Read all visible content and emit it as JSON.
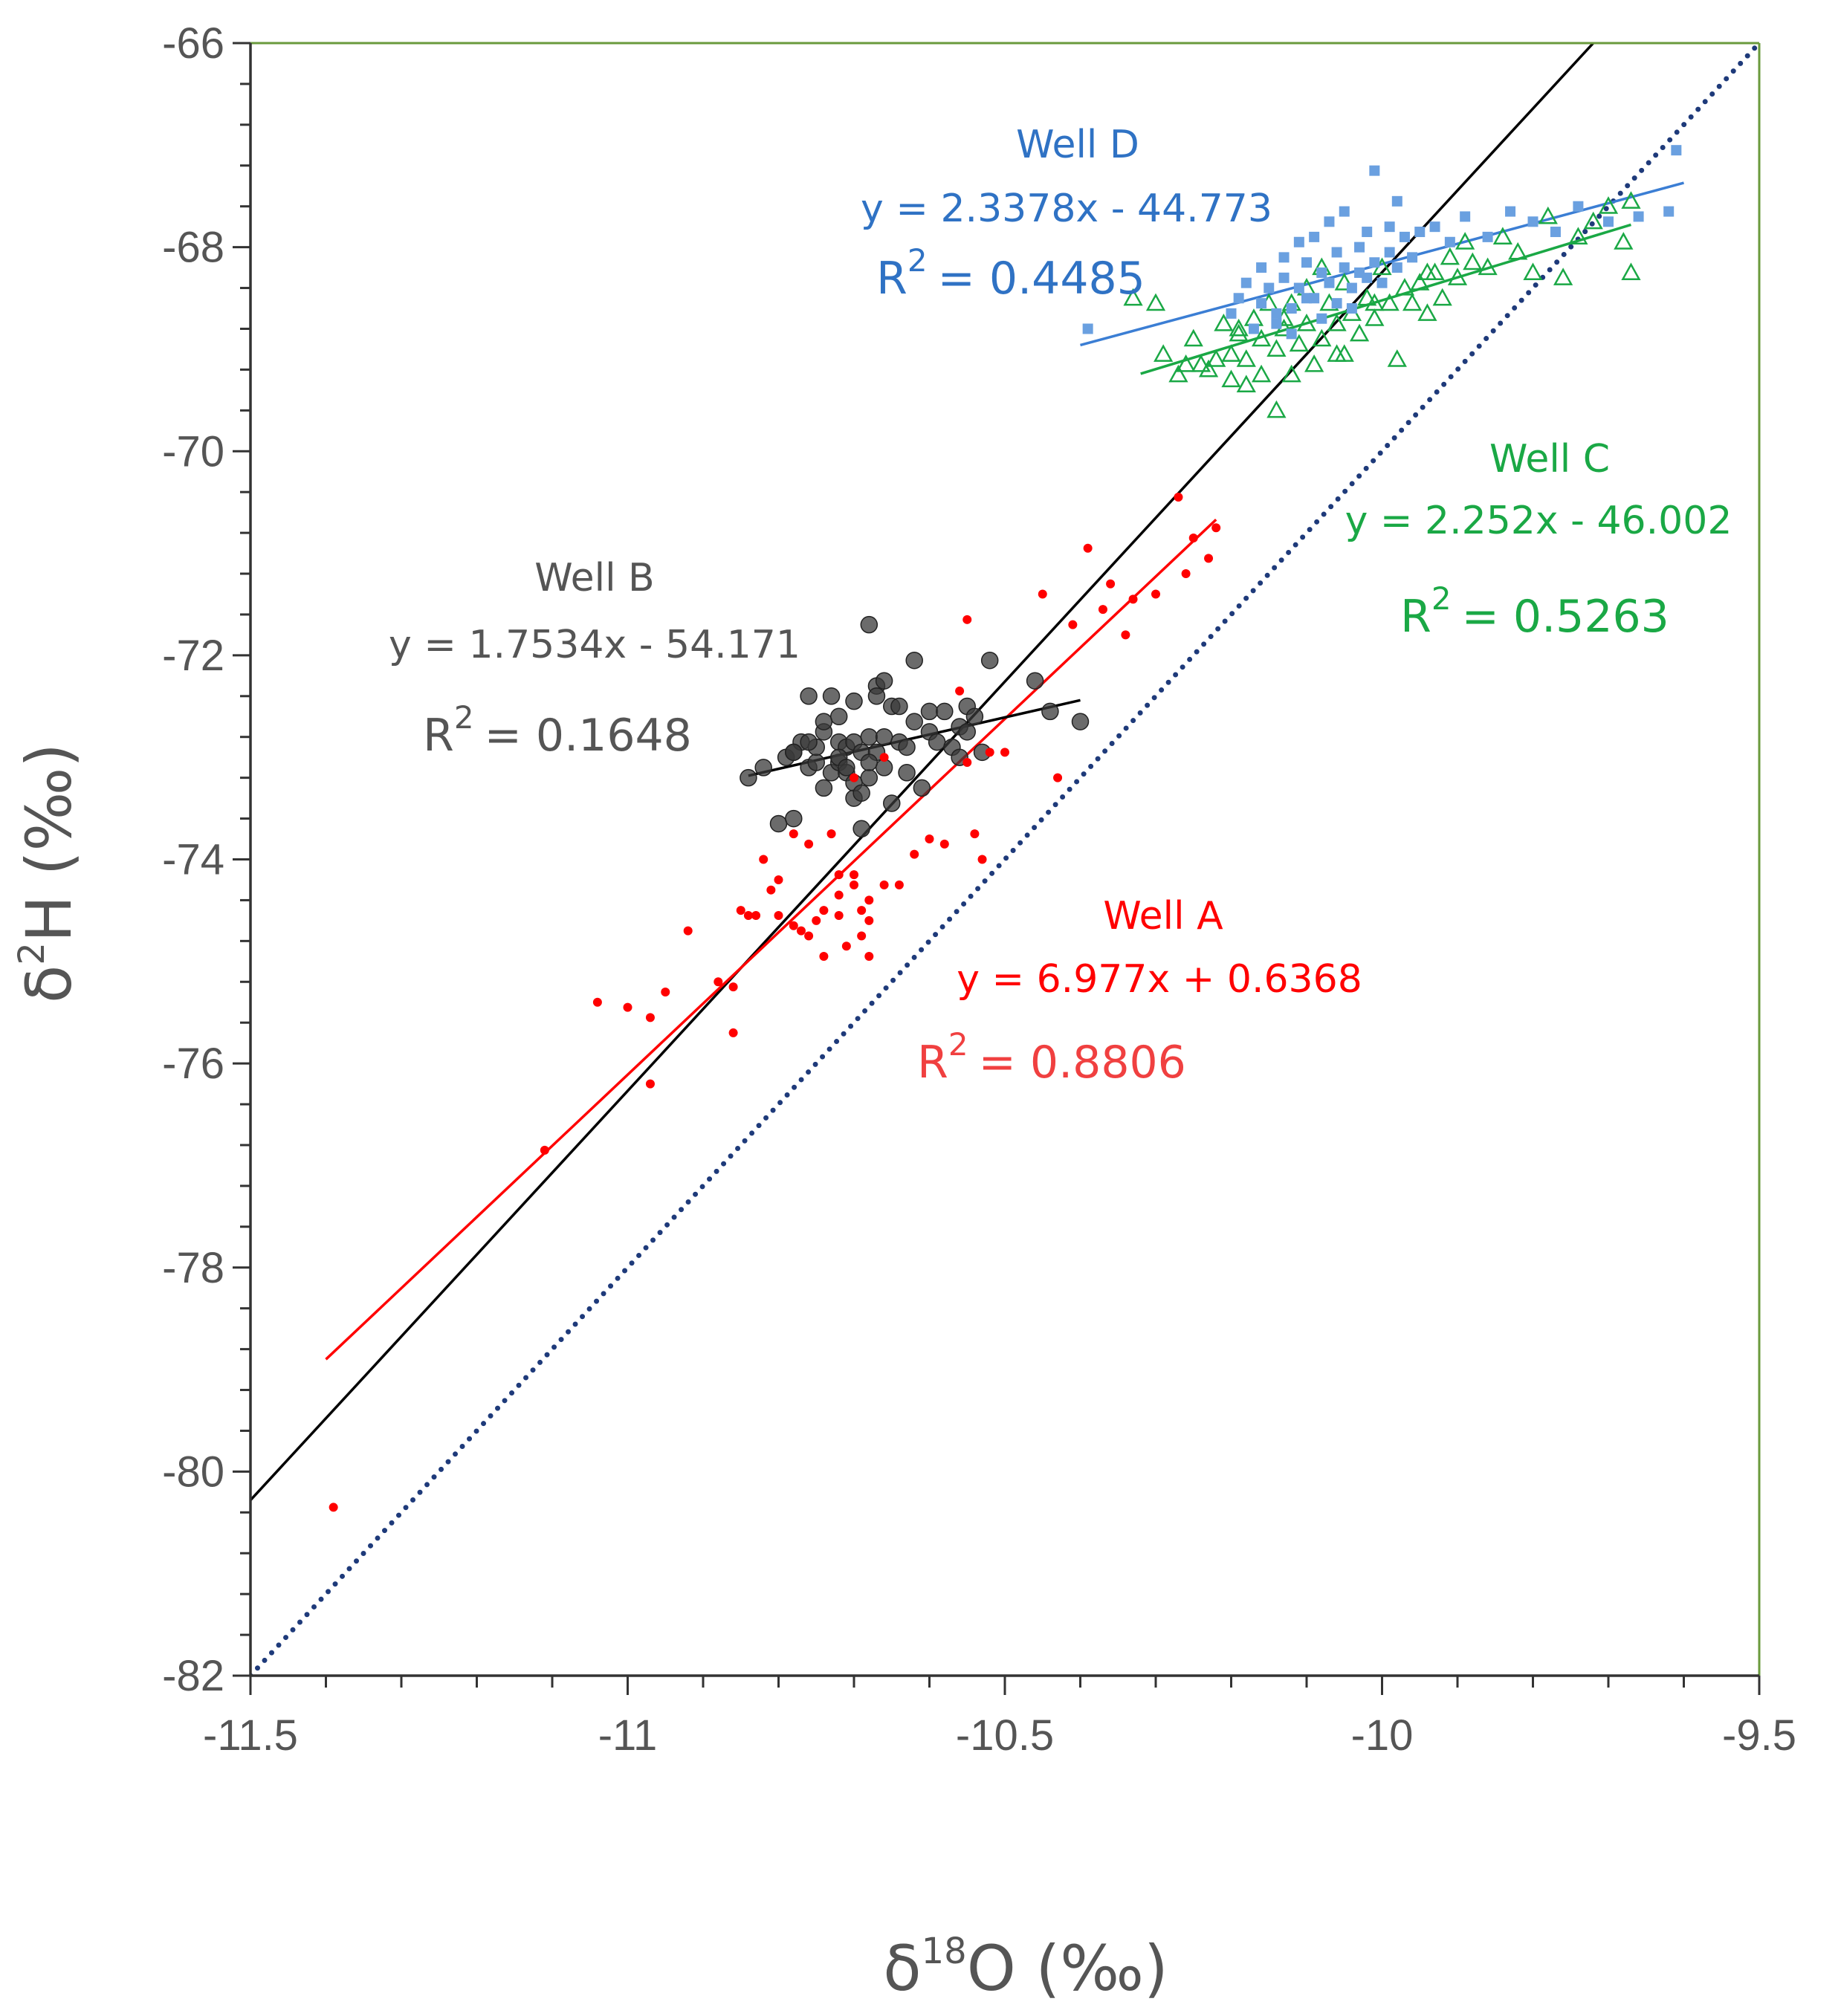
{
  "chart_data": {
    "type": "scatter",
    "title": "",
    "xlabel": {
      "prefix": "δ",
      "sup": "18",
      "main": "O (‰)"
    },
    "ylabel": {
      "prefix": "δ",
      "sup": "2",
      "main": "H (‰)"
    },
    "xlim": [
      -11.5,
      -9.5
    ],
    "ylim": [
      -82,
      -66
    ],
    "x_ticks": [
      -11.5,
      -11,
      -10.5,
      -10,
      -9.5
    ],
    "x_tick_labels": [
      "-11.5",
      "-11",
      "-10.5",
      "-10",
      "-9.5"
    ],
    "y_ticks": [
      -82,
      -80,
      -78,
      -76,
      -74,
      -72,
      -70,
      -68,
      -66
    ],
    "y_tick_labels": [
      "-82",
      "-80",
      "-78",
      "-76",
      "-74",
      "-72",
      "-70",
      "-68",
      "-66"
    ],
    "colors": {
      "well_a": "#ff0000",
      "well_b": "#555555",
      "well_c": "#1aa845",
      "well_d": "#3b7ed4",
      "gmwl": "#1e3a7a",
      "frame": "#6a9a3c",
      "axis": "#333333"
    },
    "reference_lines": [
      {
        "name": "black-line",
        "x": [
          -11.5,
          -9.72
        ],
        "y": [
          -80.28,
          -66.0
        ],
        "color": "#000000",
        "style": "solid"
      },
      {
        "name": "dotted-line",
        "x": [
          -11.5,
          -9.5
        ],
        "y": [
          -82.0,
          -66.0
        ],
        "color": "#1e3a7a",
        "style": "dotted"
      }
    ],
    "series": [
      {
        "name": "Well A",
        "marker": "star",
        "color": "#ff0000",
        "equation": "y = 6.977x + 0.6368",
        "r2_label": "R",
        "r2_sup": "2",
        "r2_value": "= 0.8806",
        "trend": {
          "x": [
            -11.4,
            -10.22
          ],
          "y": [
            -78.9,
            -70.67
          ]
        },
        "x": [
          -11.39,
          -11.11,
          -11.04,
          -11.0,
          -10.97,
          -10.97,
          -10.95,
          -10.92,
          -10.88,
          -10.86,
          -10.86,
          -10.84,
          -10.85,
          -10.83,
          -10.82,
          -10.81,
          -10.8,
          -10.8,
          -10.78,
          -10.77,
          -10.76,
          -10.76,
          -10.75,
          -10.74,
          -10.73,
          -10.72,
          -10.72,
          -10.71,
          -10.7,
          -10.7,
          -10.69,
          -10.69,
          -10.68,
          -10.68,
          -10.66,
          -10.64,
          -10.6,
          -10.56,
          -10.55,
          -10.55,
          -10.54,
          -10.53,
          -10.52,
          -10.5,
          -10.45,
          -10.43,
          -10.41,
          -10.39,
          -10.37,
          -10.36,
          -10.34,
          -10.33,
          -10.3,
          -10.27,
          -10.26,
          -10.25,
          -10.23,
          -10.22,
          -10.7,
          -10.66,
          -10.74,
          -10.68,
          -10.72,
          -10.78,
          -10.62,
          -10.58
        ],
        "y": [
          -80.35,
          -76.85,
          -75.4,
          -75.45,
          -75.55,
          -76.2,
          -75.3,
          -74.7,
          -75.2,
          -75.7,
          -75.25,
          -74.55,
          -74.5,
          -74.55,
          -74.0,
          -74.3,
          -74.55,
          -74.2,
          -73.75,
          -74.7,
          -73.85,
          -74.75,
          -74.6,
          -74.95,
          -73.75,
          -74.35,
          -74.55,
          -74.85,
          -74.15,
          -74.25,
          -74.5,
          -74.75,
          -74.4,
          -74.95,
          -74.25,
          -74.25,
          -73.8,
          -72.35,
          -71.65,
          -73.05,
          -73.75,
          -74.0,
          -72.95,
          -72.95,
          -71.4,
          -73.2,
          -71.7,
          -70.95,
          -71.55,
          -71.3,
          -71.8,
          -71.45,
          -71.4,
          -70.45,
          -71.2,
          -70.85,
          -71.05,
          -70.75,
          -73.2,
          -73.0,
          -74.5,
          -74.6,
          -74.15,
          -74.65,
          -73.95,
          -73.85
        ]
      },
      {
        "name": "Well B",
        "marker": "circle",
        "color": "#555555",
        "equation": "y = 1.7534x - 54.171",
        "r2_label": "R",
        "r2_sup": "2",
        "r2_value": "= 0.1648",
        "trend": {
          "x": [
            -10.84,
            -10.4
          ],
          "y": [
            -73.18,
            -72.44
          ]
        },
        "x": [
          -10.84,
          -10.82,
          -10.8,
          -10.79,
          -10.78,
          -10.78,
          -10.77,
          -10.76,
          -10.76,
          -10.75,
          -10.75,
          -10.74,
          -10.74,
          -10.73,
          -10.73,
          -10.72,
          -10.72,
          -10.72,
          -10.71,
          -10.71,
          -10.7,
          -10.7,
          -10.7,
          -10.69,
          -10.69,
          -10.68,
          -10.68,
          -10.68,
          -10.67,
          -10.67,
          -10.66,
          -10.66,
          -10.65,
          -10.65,
          -10.64,
          -10.63,
          -10.63,
          -10.62,
          -10.62,
          -10.61,
          -10.6,
          -10.6,
          -10.59,
          -10.58,
          -10.57,
          -10.56,
          -10.56,
          -10.55,
          -10.55,
          -10.54,
          -10.53,
          -10.52,
          -10.46,
          -10.44,
          -10.4,
          -10.68,
          -10.66,
          -10.74,
          -10.7,
          -10.76,
          -10.64,
          -10.72,
          -10.78,
          -10.69,
          -10.71,
          -10.67
        ],
        "y": [
          -73.2,
          -73.1,
          -73.65,
          -73.0,
          -72.95,
          -73.6,
          -72.85,
          -73.1,
          -72.4,
          -73.05,
          -72.9,
          -72.75,
          -73.3,
          -72.4,
          -73.15,
          -72.6,
          -73.05,
          -72.85,
          -73.15,
          -72.9,
          -72.85,
          -72.45,
          -73.4,
          -72.95,
          -73.7,
          -72.8,
          -71.7,
          -73.2,
          -72.3,
          -72.95,
          -72.8,
          -73.1,
          -73.45,
          -72.5,
          -72.85,
          -72.9,
          -73.15,
          -72.65,
          -72.05,
          -73.3,
          -72.75,
          -72.55,
          -72.85,
          -72.55,
          -72.9,
          -73.0,
          -72.7,
          -72.5,
          -72.75,
          -72.6,
          -72.95,
          -72.05,
          -72.25,
          -72.55,
          -72.65,
          -73.05,
          -72.25,
          -72.65,
          -73.25,
          -72.85,
          -72.5,
          -73.0,
          -72.95,
          -73.35,
          -73.1,
          -72.4
        ]
      },
      {
        "name": "Well C",
        "marker": "triangle",
        "color": "#1aa845",
        "equation": "y = 2.252x - 46.002",
        "r2_label": "R",
        "r2_sup": "2",
        "r2_value": "= 0.5263",
        "trend": {
          "x": [
            -10.32,
            -9.67
          ],
          "y": [
            -69.24,
            -67.78
          ]
        },
        "x": [
          -10.33,
          -10.3,
          -10.29,
          -10.27,
          -10.25,
          -10.24,
          -10.23,
          -10.22,
          -10.21,
          -10.2,
          -10.2,
          -10.19,
          -10.18,
          -10.18,
          -10.17,
          -10.16,
          -10.16,
          -10.15,
          -10.14,
          -10.14,
          -10.13,
          -10.12,
          -10.12,
          -10.11,
          -10.1,
          -10.1,
          -10.09,
          -10.08,
          -10.08,
          -10.07,
          -10.06,
          -10.05,
          -10.05,
          -10.04,
          -10.03,
          -10.02,
          -10.01,
          -10.0,
          -9.99,
          -9.98,
          -9.97,
          -9.96,
          -9.95,
          -9.94,
          -9.93,
          -9.92,
          -9.91,
          -9.9,
          -9.89,
          -9.88,
          -9.86,
          -9.84,
          -9.82,
          -9.8,
          -9.78,
          -9.76,
          -9.74,
          -9.72,
          -9.7,
          -9.68,
          -9.67,
          -9.67,
          -10.26,
          -10.19,
          -10.13,
          -10.06,
          -10.01,
          -9.94
        ],
        "y": [
          -68.5,
          -68.55,
          -69.05,
          -69.25,
          -68.9,
          -69.15,
          -69.2,
          -69.1,
          -68.75,
          -69.05,
          -69.3,
          -68.8,
          -69.1,
          -69.35,
          -68.7,
          -68.9,
          -69.25,
          -68.55,
          -69.0,
          -69.6,
          -68.8,
          -68.55,
          -69.25,
          -68.95,
          -68.4,
          -68.75,
          -69.15,
          -68.2,
          -68.9,
          -68.55,
          -68.75,
          -69.05,
          -68.35,
          -68.65,
          -68.85,
          -68.5,
          -68.7,
          -68.2,
          -68.55,
          -69.1,
          -68.4,
          -68.55,
          -68.35,
          -68.65,
          -68.25,
          -68.5,
          -68.1,
          -68.3,
          -67.95,
          -68.15,
          -68.2,
          -67.9,
          -68.05,
          -68.25,
          -67.7,
          -68.3,
          -67.9,
          -67.75,
          -67.6,
          -67.95,
          -68.25,
          -67.55,
          -69.15,
          -68.85,
          -68.7,
          -69.05,
          -68.55,
          -68.25
        ]
      },
      {
        "name": "Well D",
        "marker": "square",
        "color": "#3b7ed4",
        "equation": "y = 2.3378x - 44.773",
        "r2_label": "R",
        "r2_sup": "2",
        "r2_value": "= 0.4485",
        "trend": {
          "x": [
            -10.4,
            -9.6
          ],
          "y": [
            -68.96,
            -67.37
          ]
        },
        "x": [
          -10.39,
          -10.2,
          -10.19,
          -10.18,
          -10.17,
          -10.16,
          -10.16,
          -10.15,
          -10.14,
          -10.13,
          -10.13,
          -10.12,
          -10.11,
          -10.11,
          -10.1,
          -10.09,
          -10.09,
          -10.08,
          -10.07,
          -10.07,
          -10.06,
          -10.05,
          -10.05,
          -10.04,
          -10.03,
          -10.03,
          -10.02,
          -10.01,
          -10.01,
          -10.0,
          -9.99,
          -9.99,
          -9.98,
          -9.97,
          -9.96,
          -9.95,
          -9.93,
          -9.91,
          -9.89,
          -9.86,
          -9.83,
          -9.8,
          -9.77,
          -9.74,
          -9.7,
          -9.66,
          -9.62,
          -9.61,
          -10.14,
          -10.1,
          -10.06,
          -10.02,
          -9.98,
          -10.12,
          -10.08,
          -10.04
        ],
        "y": [
          -68.8,
          -68.65,
          -68.5,
          -68.35,
          -68.8,
          -68.2,
          -68.55,
          -68.4,
          -68.65,
          -68.1,
          -68.3,
          -68.6,
          -67.95,
          -68.4,
          -68.15,
          -67.9,
          -68.5,
          -68.25,
          -67.75,
          -68.35,
          -68.05,
          -68.2,
          -67.65,
          -68.4,
          -68.0,
          -68.25,
          -67.85,
          -67.25,
          -68.15,
          -68.35,
          -67.8,
          -68.05,
          -67.55,
          -67.9,
          -68.1,
          -67.85,
          -67.8,
          -67.95,
          -67.7,
          -67.9,
          -67.65,
          -67.75,
          -67.85,
          -67.6,
          -67.75,
          -67.7,
          -67.65,
          -67.05,
          -68.75,
          -68.5,
          -68.55,
          -68.3,
          -68.2,
          -68.85,
          -68.7,
          -68.6
        ]
      }
    ]
  }
}
